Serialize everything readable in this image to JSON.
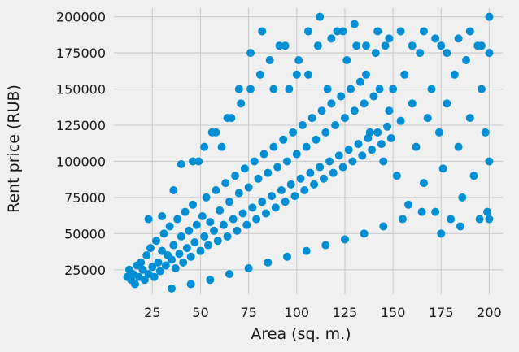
{
  "chart_data": {
    "type": "scatter",
    "title": "",
    "xlabel": "Area (sq. m.)",
    "ylabel": "Rent price (RUB)",
    "xlim": [
      5,
      207
    ],
    "ylim": [
      8000,
      206000
    ],
    "xticks": [
      25,
      50,
      75,
      100,
      125,
      150,
      175,
      200
    ],
    "yticks": [
      25000,
      50000,
      75000,
      100000,
      125000,
      150000,
      175000,
      200000
    ],
    "grid": true,
    "legend": "none",
    "point_color": "#008fd5",
    "background_color": "#f0f0f0",
    "series": [
      {
        "points": [
          [
            12,
            20000
          ],
          [
            13,
            25000
          ],
          [
            14,
            18000
          ],
          [
            15,
            22000
          ],
          [
            16,
            15000
          ],
          [
            17,
            28000
          ],
          [
            18,
            20000
          ],
          [
            19,
            30000
          ],
          [
            20,
            25000
          ],
          [
            21,
            18000
          ],
          [
            22,
            35000
          ],
          [
            23,
            22000
          ],
          [
            24,
            40000
          ],
          [
            25,
            27000
          ],
          [
            26,
            20000
          ],
          [
            27,
            45000
          ],
          [
            28,
            30000
          ],
          [
            29,
            24000
          ],
          [
            30,
            38000
          ],
          [
            31,
            50000
          ],
          [
            32,
            28000
          ],
          [
            33,
            35000
          ],
          [
            34,
            55000
          ],
          [
            35,
            32000
          ],
          [
            36,
            42000
          ],
          [
            37,
            26000
          ],
          [
            38,
            60000
          ],
          [
            39,
            36000
          ],
          [
            40,
            48000
          ],
          [
            41,
            30000
          ],
          [
            42,
            65000
          ],
          [
            43,
            40000
          ],
          [
            44,
            52000
          ],
          [
            45,
            34000
          ],
          [
            46,
            70000
          ],
          [
            47,
            44000
          ],
          [
            48,
            56000
          ],
          [
            49,
            100000
          ],
          [
            50,
            38000
          ],
          [
            51,
            62000
          ],
          [
            52,
            48000
          ],
          [
            53,
            75000
          ],
          [
            54,
            42000
          ],
          [
            55,
            58000
          ],
          [
            56,
            120000
          ],
          [
            57,
            52000
          ],
          [
            58,
            80000
          ],
          [
            59,
            45000
          ],
          [
            60,
            66000
          ],
          [
            61,
            110000
          ],
          [
            62,
            56000
          ],
          [
            63,
            85000
          ],
          [
            64,
            48000
          ],
          [
            65,
            72000
          ],
          [
            66,
            130000
          ],
          [
            67,
            60000
          ],
          [
            68,
            90000
          ],
          [
            69,
            52000
          ],
          [
            70,
            78000
          ],
          [
            71,
            140000
          ],
          [
            72,
            64000
          ],
          [
            73,
            95000
          ],
          [
            74,
            56000
          ],
          [
            75,
            82000
          ],
          [
            76,
            150000
          ],
          [
            77,
            68000
          ],
          [
            78,
            100000
          ],
          [
            79,
            60000
          ],
          [
            80,
            88000
          ],
          [
            81,
            160000
          ],
          [
            82,
            72000
          ],
          [
            83,
            105000
          ],
          [
            84,
            64000
          ],
          [
            85,
            92000
          ],
          [
            86,
            170000
          ],
          [
            87,
            76000
          ],
          [
            88,
            110000
          ],
          [
            89,
            68000
          ],
          [
            90,
            96000
          ],
          [
            91,
            180000
          ],
          [
            92,
            80000
          ],
          [
            93,
            115000
          ],
          [
            94,
            72000
          ],
          [
            95,
            100000
          ],
          [
            96,
            150000
          ],
          [
            97,
            84000
          ],
          [
            98,
            120000
          ],
          [
            99,
            76000
          ],
          [
            100,
            105000
          ],
          [
            101,
            170000
          ],
          [
            102,
            88000
          ],
          [
            103,
            125000
          ],
          [
            104,
            80000
          ],
          [
            105,
            110000
          ],
          [
            106,
            160000
          ],
          [
            107,
            92000
          ],
          [
            108,
            130000
          ],
          [
            109,
            84000
          ],
          [
            110,
            115000
          ],
          [
            111,
            180000
          ],
          [
            112,
            96000
          ],
          [
            113,
            135000
          ],
          [
            114,
            88000
          ],
          [
            115,
            120000
          ],
          [
            116,
            150000
          ],
          [
            117,
            100000
          ],
          [
            118,
            140000
          ],
          [
            119,
            92000
          ],
          [
            120,
            125000
          ],
          [
            121,
            190000
          ],
          [
            122,
            104000
          ],
          [
            123,
            145000
          ],
          [
            124,
            96000
          ],
          [
            125,
            130000
          ],
          [
            126,
            170000
          ],
          [
            127,
            108000
          ],
          [
            128,
            150000
          ],
          [
            129,
            100000
          ],
          [
            130,
            135000
          ],
          [
            131,
            180000
          ],
          [
            132,
            112000
          ],
          [
            133,
            155000
          ],
          [
            134,
            104000
          ],
          [
            135,
            140000
          ],
          [
            136,
            160000
          ],
          [
            137,
            116000
          ],
          [
            138,
            120000
          ],
          [
            139,
            108000
          ],
          [
            140,
            145000
          ],
          [
            141,
            175000
          ],
          [
            142,
            120000
          ],
          [
            143,
            150000
          ],
          [
            144,
            112000
          ],
          [
            145,
            100000
          ],
          [
            146,
            180000
          ],
          [
            147,
            124000
          ],
          [
            148,
            135000
          ],
          [
            149,
            116000
          ],
          [
            150,
            150000
          ],
          [
            152,
            90000
          ],
          [
            154,
            128000
          ],
          [
            156,
            160000
          ],
          [
            158,
            70000
          ],
          [
            160,
            140000
          ],
          [
            162,
            110000
          ],
          [
            164,
            175000
          ],
          [
            166,
            85000
          ],
          [
            168,
            130000
          ],
          [
            170,
            150000
          ],
          [
            172,
            65000
          ],
          [
            174,
            120000
          ],
          [
            175,
            180000
          ],
          [
            176,
            95000
          ],
          [
            178,
            140000
          ],
          [
            180,
            60000
          ],
          [
            182,
            160000
          ],
          [
            184,
            110000
          ],
          [
            186,
            75000
          ],
          [
            188,
            170000
          ],
          [
            190,
            130000
          ],
          [
            192,
            90000
          ],
          [
            194,
            180000
          ],
          [
            196,
            150000
          ],
          [
            198,
            120000
          ],
          [
            199,
            65000
          ],
          [
            200,
            200000
          ],
          [
            200,
            60000
          ],
          [
            200,
            100000
          ],
          [
            200,
            175000
          ],
          [
            23,
            60000
          ],
          [
            30,
            62000
          ],
          [
            36,
            80000
          ],
          [
            40,
            98000
          ],
          [
            46,
            100000
          ],
          [
            52,
            110000
          ],
          [
            58,
            120000
          ],
          [
            64,
            130000
          ],
          [
            70,
            150000
          ],
          [
            76,
            175000
          ],
          [
            82,
            190000
          ],
          [
            88,
            150000
          ],
          [
            94,
            180000
          ],
          [
            100,
            160000
          ],
          [
            106,
            190000
          ],
          [
            112,
            200000
          ],
          [
            118,
            185000
          ],
          [
            124,
            190000
          ],
          [
            130,
            195000
          ],
          [
            136,
            180000
          ],
          [
            142,
            190000
          ],
          [
            148,
            185000
          ],
          [
            154,
            190000
          ],
          [
            160,
            180000
          ],
          [
            166,
            190000
          ],
          [
            172,
            185000
          ],
          [
            178,
            175000
          ],
          [
            184,
            185000
          ],
          [
            190,
            190000
          ],
          [
            196,
            180000
          ],
          [
            35,
            12000
          ],
          [
            45,
            15000
          ],
          [
            55,
            18000
          ],
          [
            65,
            22000
          ],
          [
            75,
            26000
          ],
          [
            85,
            30000
          ],
          [
            95,
            34000
          ],
          [
            105,
            38000
          ],
          [
            115,
            42000
          ],
          [
            125,
            46000
          ],
          [
            135,
            50000
          ],
          [
            145,
            55000
          ],
          [
            155,
            60000
          ],
          [
            165,
            65000
          ],
          [
            175,
            50000
          ],
          [
            185,
            55000
          ],
          [
            195,
            60000
          ]
        ]
      }
    ]
  }
}
